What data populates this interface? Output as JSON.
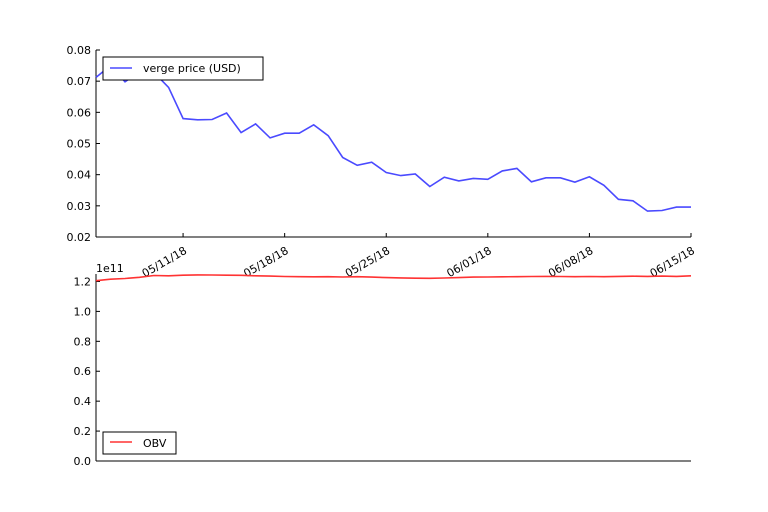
{
  "chart_data": [
    {
      "type": "line",
      "series": [
        {
          "name": "verge price (USD)",
          "color": "#4a4aff",
          "x": [
            "05/05/18",
            "05/06/18",
            "05/07/18",
            "05/08/18",
            "05/09/18",
            "05/10/18",
            "05/11/18",
            "05/12/18",
            "05/13/18",
            "05/14/18",
            "05/15/18",
            "05/16/18",
            "05/17/18",
            "05/18/18",
            "05/19/18",
            "05/20/18",
            "05/21/18",
            "05/22/18",
            "05/23/18",
            "05/24/18",
            "05/25/18",
            "05/26/18",
            "05/27/18",
            "05/28/18",
            "05/29/18",
            "05/30/18",
            "05/31/18",
            "06/01/18",
            "06/02/18",
            "06/03/18",
            "06/04/18",
            "06/05/18",
            "06/06/18",
            "06/07/18",
            "06/08/18",
            "06/09/18",
            "06/10/18",
            "06/11/18",
            "06/12/18",
            "06/13/18",
            "06/14/18",
            "06/15/18"
          ],
          "values": [
            0.0712,
            0.075,
            0.0698,
            0.073,
            0.0728,
            0.068,
            0.058,
            0.0576,
            0.0577,
            0.0598,
            0.0535,
            0.0563,
            0.0518,
            0.0533,
            0.0533,
            0.056,
            0.0525,
            0.0455,
            0.043,
            0.044,
            0.0407,
            0.0397,
            0.0402,
            0.0362,
            0.0392,
            0.038,
            0.0388,
            0.0385,
            0.0412,
            0.042,
            0.0377,
            0.039,
            0.039,
            0.0376,
            0.0393,
            0.0366,
            0.0321,
            0.0316,
            0.0283,
            0.0285,
            0.0296,
            0.0296
          ]
        }
      ],
      "ylim": [
        0.02,
        0.08
      ],
      "yticks": [
        "0.02",
        "0.03",
        "0.04",
        "0.05",
        "0.06",
        "0.07",
        "0.08"
      ],
      "xticklabels": [
        "05/11/18",
        "05/18/18",
        "05/25/18",
        "06/01/18",
        "06/08/18",
        "06/15/18"
      ],
      "legend": "upper left",
      "grid": false
    },
    {
      "type": "line",
      "series": [
        {
          "name": "OBV",
          "color": "#ff3333",
          "values": [
            1.205,
            1.215,
            1.22,
            1.228,
            1.24,
            1.238,
            1.242,
            1.244,
            1.243,
            1.242,
            1.241,
            1.238,
            1.236,
            1.233,
            1.232,
            1.231,
            1.232,
            1.23,
            1.232,
            1.229,
            1.226,
            1.224,
            1.222,
            1.221,
            1.223,
            1.226,
            1.229,
            1.23,
            1.231,
            1.232,
            1.233,
            1.234,
            1.233,
            1.232,
            1.233,
            1.232,
            1.234,
            1.235,
            1.234,
            1.236,
            1.234,
            1.238
          ]
        }
      ],
      "ylim": [
        0.0,
        1.25
      ],
      "yticks": [
        "0.0",
        "0.2",
        "0.4",
        "0.6",
        "0.8",
        "1.0",
        "1.2"
      ],
      "y_offset_label": "1e11",
      "legend": "lower left",
      "grid": false
    }
  ]
}
